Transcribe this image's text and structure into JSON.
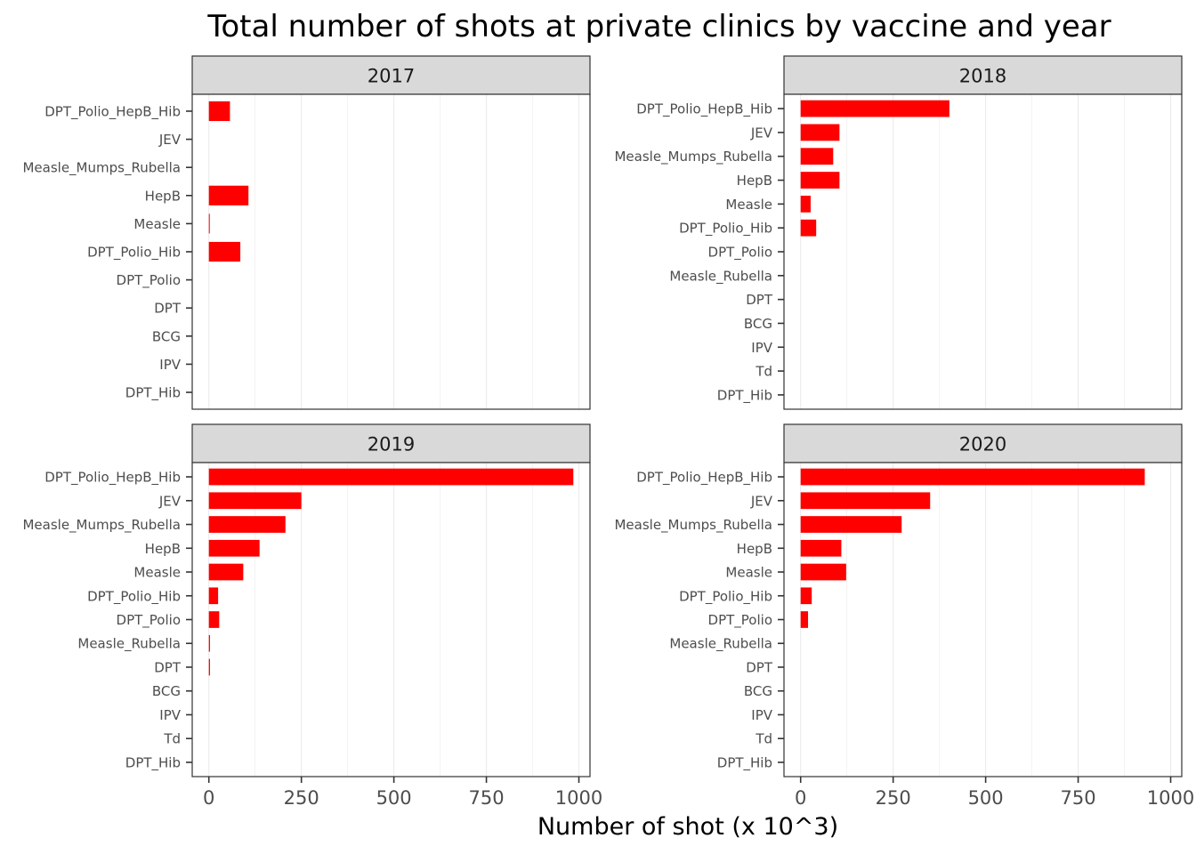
{
  "chart_data": {
    "type": "bar",
    "orientation": "horizontal",
    "title": "Total number of shots at private clinics by vaccine and year",
    "xlabel": "Number of shot (x 10^3)",
    "ylabel": "",
    "xlim": [
      -45,
      1030
    ],
    "xticks": [
      0,
      250,
      500,
      750,
      1000
    ],
    "xtick_labels": [
      "0",
      "250",
      "500",
      "750",
      "1000"
    ],
    "grid": true,
    "bar_color": "#FF0000",
    "facet_layout": "2x2",
    "panels": [
      {
        "strip_label": "2017",
        "categories": [
          "DPT_Polio_HepB_Hib",
          "JEV",
          "Measle_Mumps_Rubella",
          "HepB",
          "Measle",
          "DPT_Polio_Hib",
          "DPT_Polio",
          "DPT",
          "BCG",
          "IPV",
          "DPT_Hib"
        ],
        "values": [
          57,
          0,
          0,
          107,
          2,
          85,
          0,
          0,
          0,
          0,
          0
        ]
      },
      {
        "strip_label": "2018",
        "categories": [
          "DPT_Polio_HepB_Hib",
          "JEV",
          "Measle_Mumps_Rubella",
          "HepB",
          "Measle",
          "DPT_Polio_Hib",
          "DPT_Polio",
          "Measle_Rubella",
          "DPT",
          "BCG",
          "IPV",
          "Td",
          "DPT_Hib"
        ],
        "values": [
          402,
          105,
          88,
          105,
          27,
          42,
          0,
          0,
          0,
          0,
          0,
          0,
          0
        ]
      },
      {
        "strip_label": "2019",
        "categories": [
          "DPT_Polio_HepB_Hib",
          "JEV",
          "Measle_Mumps_Rubella",
          "HepB",
          "Measle",
          "DPT_Polio_Hib",
          "DPT_Polio",
          "Measle_Rubella",
          "DPT",
          "BCG",
          "IPV",
          "Td",
          "DPT_Hib"
        ],
        "values": [
          985,
          250,
          207,
          137,
          93,
          25,
          28,
          3,
          3,
          0,
          0,
          0,
          0
        ]
      },
      {
        "strip_label": "2020",
        "categories": [
          "DPT_Polio_HepB_Hib",
          "JEV",
          "Measle_Mumps_Rubella",
          "HepB",
          "Measle",
          "DPT_Polio_Hib",
          "DPT_Polio",
          "Measle_Rubella",
          "DPT",
          "BCG",
          "IPV",
          "Td",
          "DPT_Hib"
        ],
        "values": [
          930,
          350,
          273,
          110,
          123,
          30,
          20,
          0,
          0,
          0,
          0,
          0,
          0
        ]
      }
    ]
  }
}
